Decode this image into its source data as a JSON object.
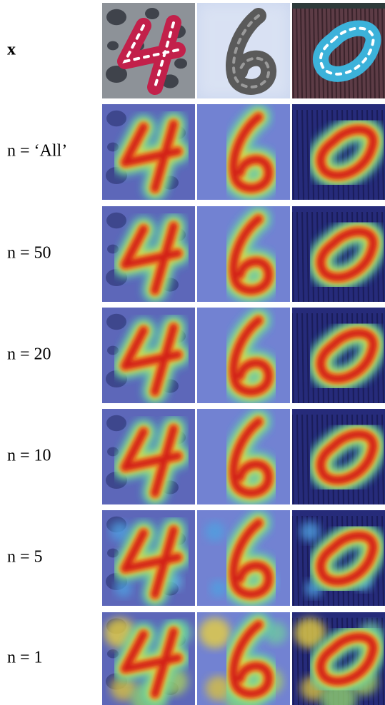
{
  "rows": [
    {
      "label": "x"
    },
    {
      "label": "n = ‘All’"
    },
    {
      "label": "n = 50"
    },
    {
      "label": "n = 20"
    },
    {
      "label": "n = 10"
    },
    {
      "label": "n = 5"
    },
    {
      "label": "n = 1"
    }
  ]
}
